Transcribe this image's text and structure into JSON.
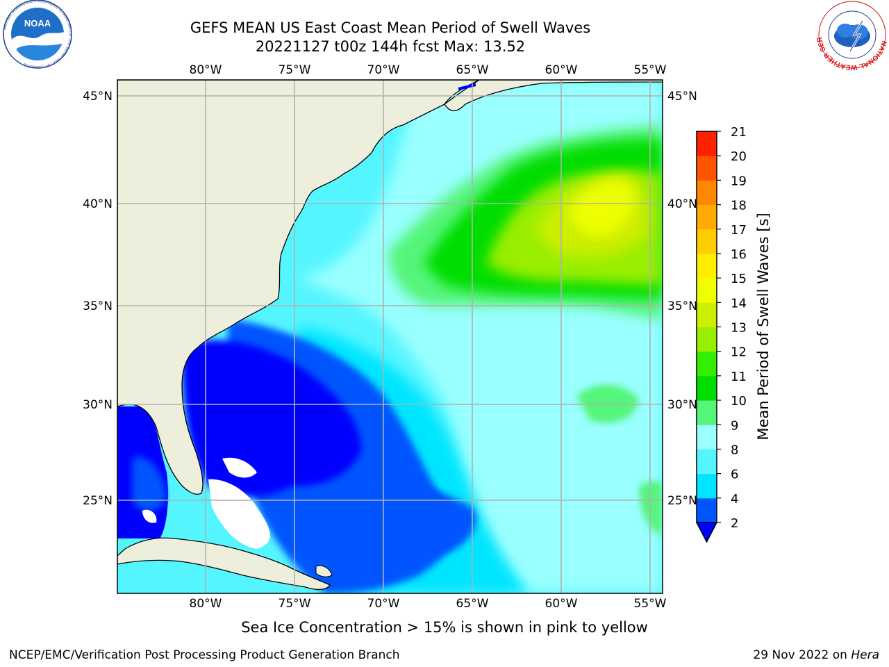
{
  "header": {
    "title_line1": "GEFS MEAN US East Coast Mean Period of Swell Waves",
    "title_line2": "20221127 t00z 144h fcst   Max: 13.52"
  },
  "logos": {
    "left": {
      "icon": "noaa-logo",
      "text": "NOAA",
      "ring_text": "NATIONAL OCEANIC AND ATMOSPHERIC ADMINISTRATION · U.S. DEPARTMENT OF COMMERCE"
    },
    "right": {
      "icon": "nws-logo",
      "ring_text": "NATIONAL WEATHER SERVICE"
    }
  },
  "map": {
    "lon_labels": [
      "80°W",
      "75°W",
      "70°W",
      "65°W",
      "60°W",
      "55°W"
    ],
    "lat_labels": [
      "45°N",
      "40°N",
      "35°N",
      "30°N",
      "25°N"
    ],
    "colors": {
      "land": "#eeeedd",
      "grid": "#b0b0b0",
      "coast": "#000000"
    }
  },
  "colorbar": {
    "label": "Mean Period of Swell Waves [s]",
    "ticks": [
      "2",
      "4",
      "6",
      "8",
      "9",
      "10",
      "11",
      "12",
      "13",
      "14",
      "15",
      "16",
      "17",
      "18",
      "19",
      "20",
      "21"
    ],
    "colors": [
      "#0055ff",
      "#00e5ff",
      "#55f5ff",
      "#99ffff",
      "#55f57a",
      "#00dd00",
      "#33ee00",
      "#99ee00",
      "#ccee00",
      "#eeff00",
      "#ffee00",
      "#ffcc00",
      "#ffaa00",
      "#ff8800",
      "#ff5500",
      "#ff2200"
    ],
    "extend_color": "#0000ff"
  },
  "footer": {
    "note": "Sea Ice Concentration > 15% is shown in pink to yellow",
    "credit": "NCEP/EMC/Verification Post Processing Product Generation Branch",
    "date": "29 Nov 2022 on ",
    "machine": "Hera"
  }
}
